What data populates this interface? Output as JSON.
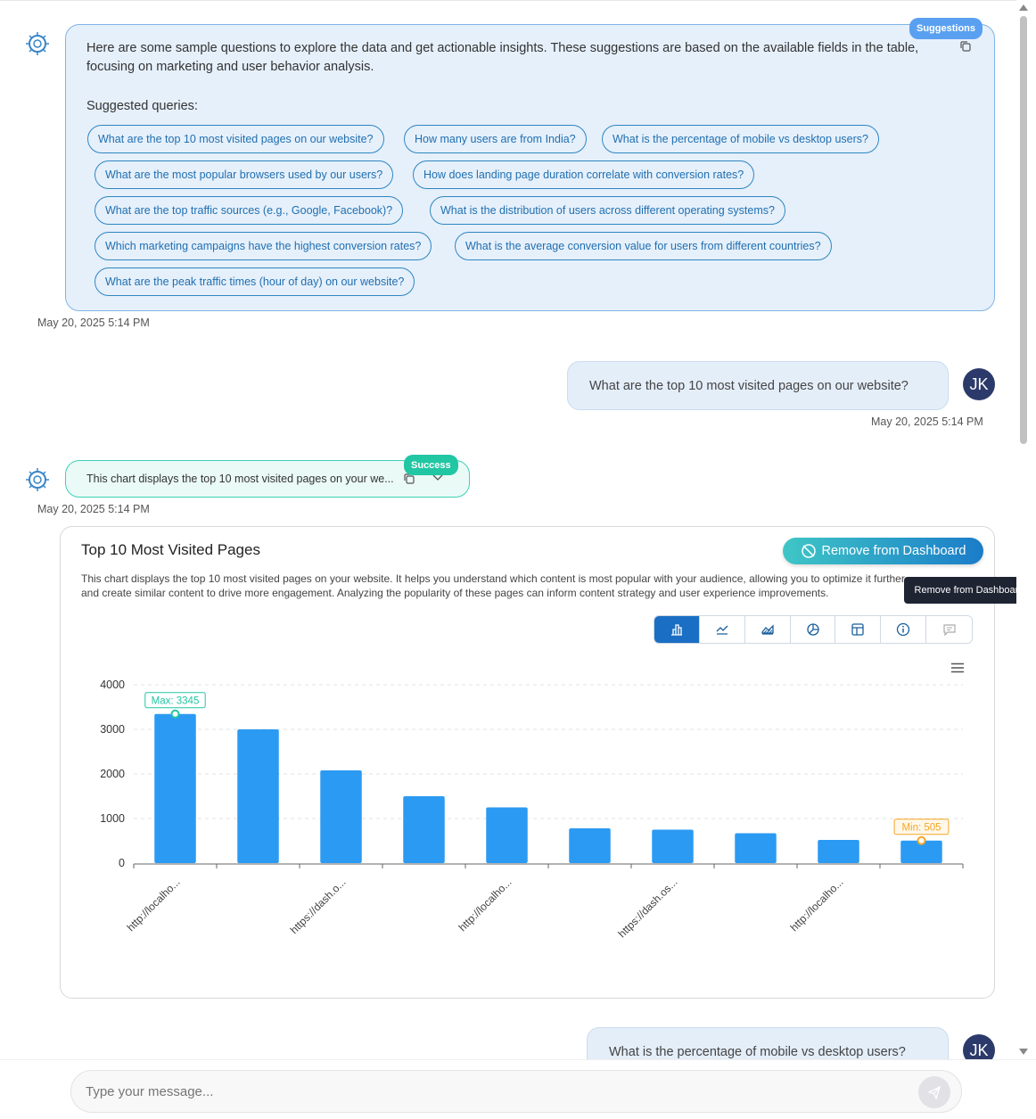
{
  "suggestions_message": {
    "badge": "Suggestions",
    "intro": "Here are some sample questions to explore the data and get actionable insights. These suggestions are based on the available fields in the table, focusing on marketing and user behavior analysis.",
    "heading": "Suggested queries:",
    "chips": [
      "What are the top 10 most visited pages on our website?",
      "How many users are from India?",
      "What is the percentage of mobile vs desktop users?",
      "What are the most popular browsers used by our users?",
      "How does landing page duration correlate with conversion rates?",
      "What are the top traffic sources (e.g., Google, Facebook)?",
      "What is the distribution of users across different operating systems?",
      "Which marketing campaigns have the highest conversion rates?",
      "What is the average conversion value for users from different countries?",
      "What are the peak traffic times (hour of day) on our website?"
    ],
    "timestamp": "May 20, 2025 5:14 PM"
  },
  "user_message_1": {
    "text": "What are the top 10 most visited pages on our website?",
    "timestamp": "May 20, 2025 5:14 PM",
    "avatar": "JK"
  },
  "success_message": {
    "badge": "Success",
    "text": "This chart displays the top 10 most visited pages on your we...",
    "timestamp": "May 20, 2025 5:14 PM"
  },
  "chart_card": {
    "title": "Top 10 Most Visited Pages",
    "description": "This chart displays the top 10 most visited pages on your website. It helps you understand which content is most popular with your audience, allowing you to optimize it further and create similar content to drive more engagement. Analyzing the popularity of these pages can inform content strategy and user experience improvements.",
    "remove_button": "Remove from Dashboard",
    "tooltip": "Remove from Dashboard",
    "toolbar": [
      "bar-chart-icon",
      "line-chart-icon",
      "area-chart-icon",
      "pie-chart-icon",
      "table-icon",
      "info-icon",
      "comment-icon"
    ],
    "bar_color": "#2b9af3",
    "max_color": "#21c6a3",
    "min_color": "#f5a623"
  },
  "chart_data": {
    "type": "bar",
    "categories": [
      "http://localho...",
      "",
      "https://dash.o...",
      "",
      "http://localho...",
      "",
      "https://dash.os...",
      "",
      "http://localho...",
      ""
    ],
    "values": [
      3345,
      3000,
      2080,
      1500,
      1250,
      780,
      750,
      670,
      520,
      505
    ],
    "ylim": [
      0,
      4000
    ],
    "yticks": [
      "0",
      "1000",
      "2000",
      "3000",
      "4000"
    ],
    "annotations": {
      "max": "Max: 3345",
      "min": "Min: 505"
    },
    "grid": true
  },
  "user_message_2": {
    "text": "What is the percentage of mobile vs desktop users?",
    "avatar": "JK"
  },
  "composer": {
    "placeholder": "Type your message..."
  }
}
